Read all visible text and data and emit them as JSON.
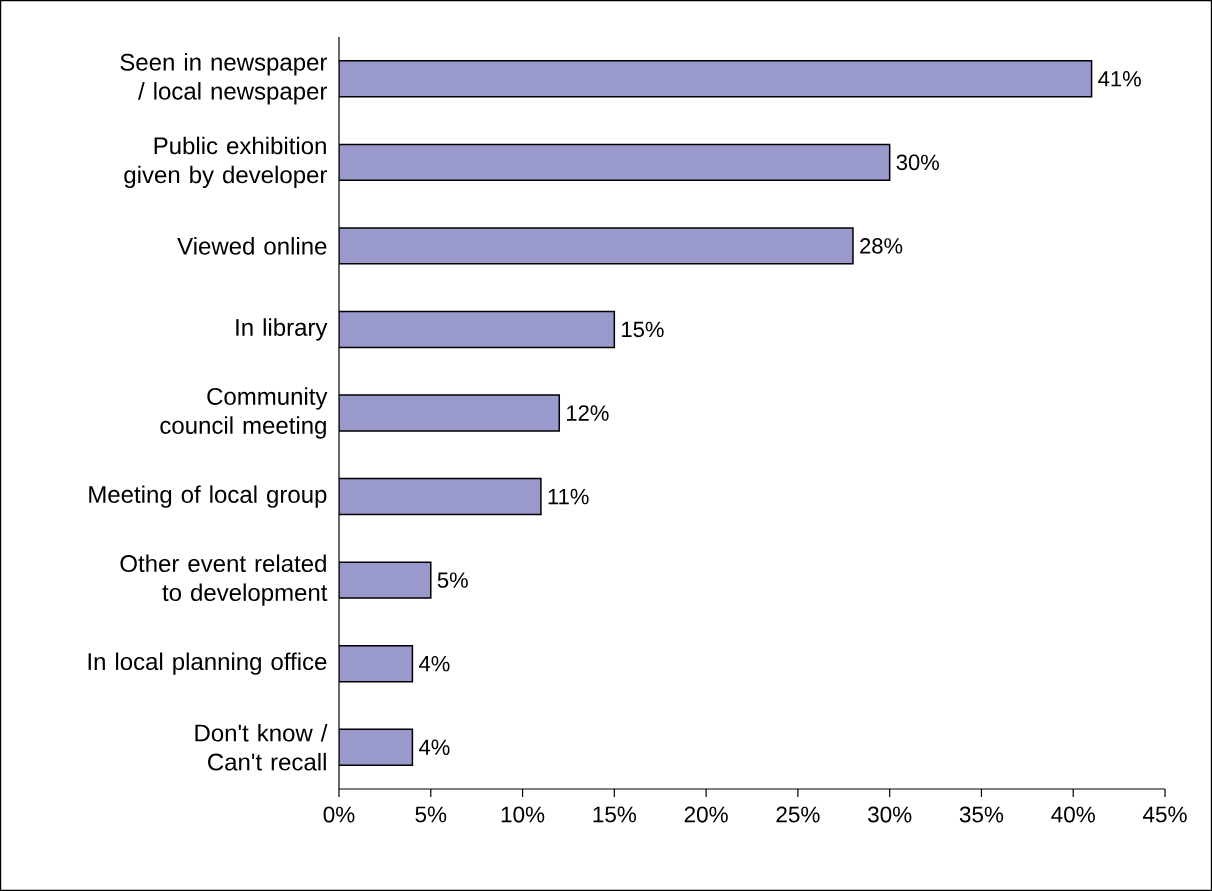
{
  "chart_data": {
    "type": "bar",
    "orientation": "horizontal",
    "categories": [
      "Seen in newspaper / local newspaper",
      "Public exhibition given by developer",
      "Viewed online",
      "In library",
      "Community council meeting",
      "Meeting of local group",
      "Other event related to development",
      "In local planning office",
      "Don't know / Can't recall"
    ],
    "values": [
      41,
      30,
      28,
      15,
      12,
      11,
      5,
      4,
      4
    ],
    "value_labels": [
      "41%",
      "30%",
      "28%",
      "15%",
      "12%",
      "11%",
      "5%",
      "4%",
      "4%"
    ],
    "color": "#9999cc",
    "xlim": [
      0,
      45
    ],
    "xticks": [
      {
        "value": 0,
        "label": "0%"
      },
      {
        "value": 5,
        "label": "5%"
      },
      {
        "value": 10,
        "label": "10%"
      },
      {
        "value": 15,
        "label": "15%"
      },
      {
        "value": 20,
        "label": "20%"
      },
      {
        "value": 25,
        "label": "25%"
      },
      {
        "value": 30,
        "label": "30%"
      },
      {
        "value": 35,
        "label": "35%"
      },
      {
        "value": 40,
        "label": "40%"
      },
      {
        "value": 45,
        "label": "45%"
      }
    ],
    "grid": false
  }
}
